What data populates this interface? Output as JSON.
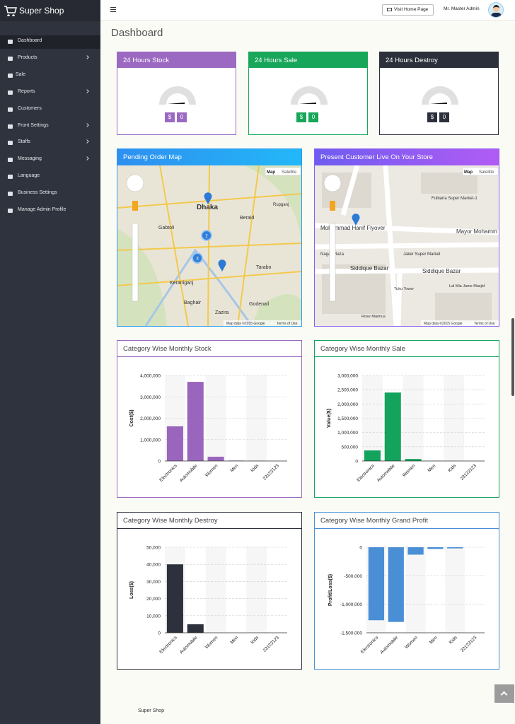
{
  "brand": "Super Shop",
  "header": {
    "button": "Visit Home Page",
    "user": "Mr. Master Admin"
  },
  "sidebar": [
    "Dashboard",
    "Products",
    "Sale",
    "Reports",
    "Customers",
    "Front Settings",
    "Staffs",
    "Messaging",
    "Language",
    "Business Settings",
    "Manage Admin Profile"
  ],
  "page_title": "Dashboard",
  "stat_cards": [
    {
      "title": "24 Hours Stock",
      "currency": "$",
      "value": 0
    },
    {
      "title": "24 Hours Sale",
      "currency": "$",
      "value": 0
    },
    {
      "title": "24 Hours Destroy",
      "currency": "$",
      "value": 0
    }
  ],
  "maps": [
    {
      "title": "Pending Order Map",
      "controls": [
        "Map",
        "Satellite"
      ],
      "clusters": [
        "2",
        "3"
      ],
      "labels": [
        "Dhaka",
        "Beraid",
        "Gabtoli",
        "Keraniganj",
        "Baghair",
        "Tarabo",
        "Godenail",
        "Zazira",
        "Rupganj"
      ],
      "attribution": "Map data ©2015 Google",
      "terms": "Terms of Use"
    },
    {
      "title": "Present Customer Live On Your Store",
      "controls": [
        "Map",
        "Satellite"
      ],
      "clusters": [],
      "labels": [
        "Mohammad Hanif Flyover",
        "Mayor Mohamm",
        "Fulbaria Super Market-1",
        "Jaker Super Market",
        "Nagar Plaza",
        "Siddique Bazar",
        "Siddique Bazar",
        "Tuku Tower",
        "Lal Mia Jame Masjid",
        "Rose Marinus"
      ],
      "attribution": "Map data ©2015 Google",
      "terms": "Terms of Use"
    }
  ],
  "chart_data": [
    {
      "type": "bar",
      "title": "Category Wise Monthly Stock",
      "ylabel": "Cost($)",
      "color": "#9a66bd",
      "categories": [
        "Electronics",
        "Automobile",
        "Women",
        "Men",
        "Kids",
        "23123123"
      ],
      "values": [
        1620000,
        3700000,
        200000,
        20000,
        15000,
        0
      ],
      "ylim": [
        0,
        4000000
      ],
      "yticks": [
        0,
        {
          "value": 1000000,
          "label": "1,000,000"
        },
        {
          "value": 2000000,
          "label": "2,000,000"
        },
        {
          "value": 3000000,
          "label": "3,000,000"
        },
        {
          "value": 4000000,
          "label": "4,000,000"
        }
      ],
      "grid": true
    },
    {
      "type": "bar",
      "title": "Category Wise Monthly Sale",
      "ylabel": "Value($)",
      "color": "#13a35c",
      "categories": [
        "Electronics",
        "Automobile",
        "Women",
        "Men",
        "Kids",
        "23123123"
      ],
      "values": [
        370000,
        2400000,
        70000,
        5000,
        3000,
        0
      ],
      "ylim": [
        0,
        3000000
      ],
      "yticks": [
        0,
        {
          "value": 500000,
          "label": "500,000"
        },
        {
          "value": 1000000,
          "label": "1,000,000"
        },
        {
          "value": 1500000,
          "label": "1,500,000"
        },
        {
          "value": 2000000,
          "label": "2,000,000"
        },
        {
          "value": 2500000,
          "label": "2,500,000"
        },
        {
          "value": 3000000,
          "label": "3,000,000"
        }
      ],
      "grid": true
    },
    {
      "type": "bar",
      "title": "Category Wise Monthly Destroy",
      "ylabel": "Loss($)",
      "color": "#2c313c",
      "categories": [
        "Electronics",
        "Automobile",
        "Women",
        "Men",
        "Kids",
        "23123123"
      ],
      "values": [
        40000,
        5000,
        0,
        0,
        0,
        0
      ],
      "ylim": [
        0,
        50000
      ],
      "yticks": [
        0,
        {
          "value": 10000,
          "label": "10,000"
        },
        {
          "value": 20000,
          "label": "20,000"
        },
        {
          "value": 30000,
          "label": "30,000"
        },
        {
          "value": 40000,
          "label": "40,000"
        },
        {
          "value": 50000,
          "label": "50,000"
        }
      ],
      "grid": true
    },
    {
      "type": "bar",
      "title": "Category Wise Monthly Grand Profit",
      "ylabel": "Profit/Loss($)",
      "color": "#4a8fd6",
      "categories": [
        "Electronics",
        "Automobile",
        "Women",
        "Men",
        "Kids",
        "23123123"
      ],
      "values": [
        -1280000,
        -1310000,
        -130000,
        -30000,
        -20000,
        0
      ],
      "ylim": [
        -1500000,
        0
      ],
      "yticks": [
        {
          "value": -1500000,
          "label": "-1,500,000"
        },
        {
          "value": -1000000,
          "label": "-1,000,000"
        },
        {
          "value": -500000,
          "label": "-500,000"
        },
        0
      ],
      "grid": true
    }
  ],
  "footer": "Super Shop"
}
